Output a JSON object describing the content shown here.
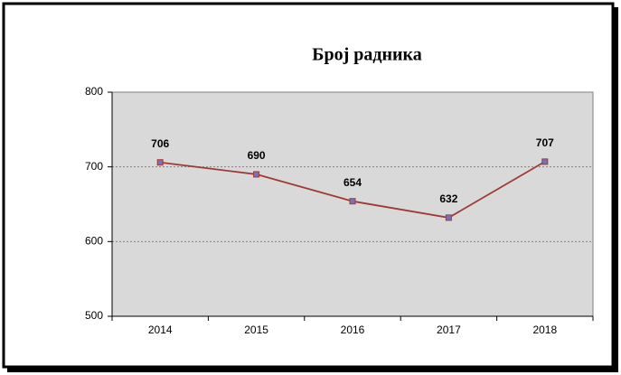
{
  "chart_data": {
    "type": "line",
    "title": "Број радника",
    "categories": [
      "2014",
      "2015",
      "2016",
      "2017",
      "2018"
    ],
    "series": [
      {
        "name": "Број радника",
        "color": "#9e3a36",
        "marker_color": "#7b6fb8",
        "values": [
          706,
          690,
          654,
          632,
          707
        ]
      }
    ],
    "ylim": [
      500,
      800
    ],
    "yticks": [
      500,
      600,
      700,
      800
    ],
    "grid": true,
    "legend": false
  }
}
